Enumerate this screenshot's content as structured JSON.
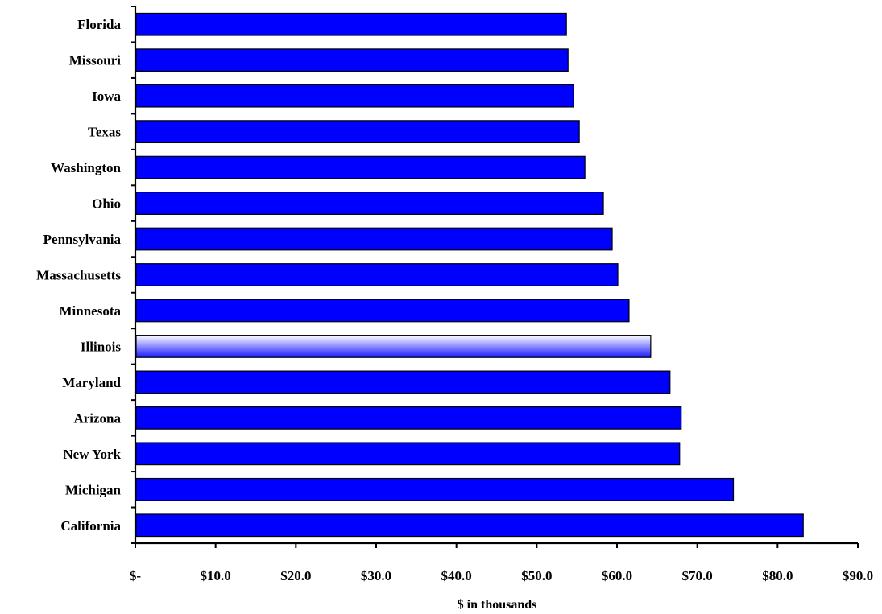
{
  "chart_data": {
    "type": "bar",
    "orientation": "horizontal",
    "categories": [
      "Florida",
      "Missouri",
      "Iowa",
      "Texas",
      "Washington",
      "Ohio",
      "Pennsylvania",
      "Massachusetts",
      "Minnesota",
      "Illinois",
      "Maryland",
      "Arizona",
      "New York",
      "Michigan",
      "California"
    ],
    "values": [
      53.7,
      53.9,
      54.6,
      55.3,
      56.0,
      58.3,
      59.4,
      60.1,
      61.5,
      64.2,
      66.6,
      68.0,
      67.8,
      74.5,
      83.2
    ],
    "highlight_category": "Illinois",
    "xlabel": "$ in thousands",
    "ylabel": "",
    "title": "",
    "xlim": [
      0,
      90
    ],
    "xticks": [
      0,
      10,
      20,
      30,
      40,
      50,
      60,
      70,
      80,
      90
    ],
    "xtick_labels": [
      "$-",
      "$10.0",
      "$20.0",
      "$30.0",
      "$40.0",
      "$50.0",
      "$60.0",
      "$70.0",
      "$80.0",
      "$90.0"
    ],
    "grid": false,
    "legend": "none",
    "colors": {
      "bar": "#0000ff",
      "bar_highlight_top": "#ffffff",
      "bar_highlight_bottom": "#1a1aff",
      "bar_edge": "#000000"
    }
  }
}
